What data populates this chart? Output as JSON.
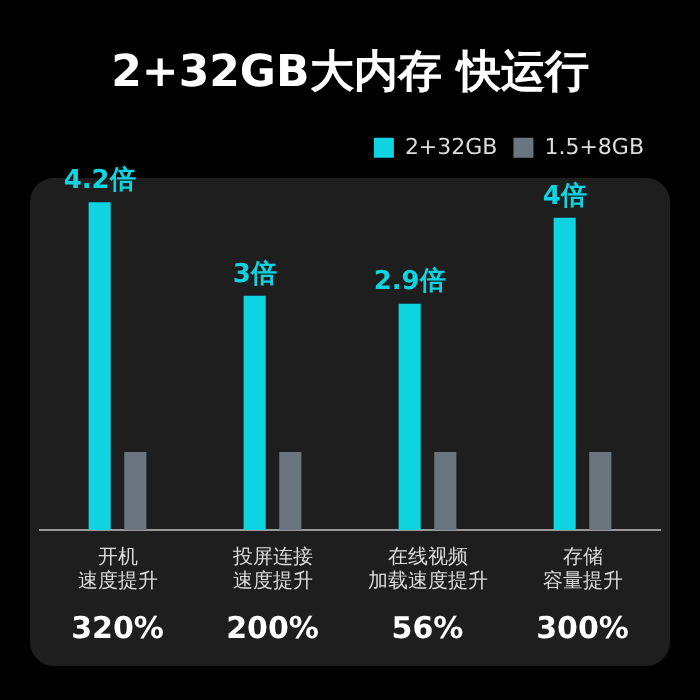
{
  "chart_data": {
    "type": "bar",
    "title": "2+32GB大内存 快运行",
    "legend": "top right",
    "tick_labels": "x",
    "categories": [
      "开机速度提升",
      "投屏连接速度提升",
      "在线视频加载速度提升",
      "存储容量提升"
    ],
    "series": [
      {
        "name": "2+32GB",
        "color": "#0ed3e0",
        "values": [
          4.2,
          3,
          2.9,
          4
        ],
        "value_labels": [
          "4.2倍",
          "3倍",
          "2.9倍",
          "4倍"
        ]
      },
      {
        "name": "1.5+8GB",
        "color": "#6b7580",
        "values": [
          1,
          1,
          1,
          1
        ]
      }
    ],
    "annotations": [
      "320%",
      "200%",
      "56%",
      "300%"
    ]
  }
}
